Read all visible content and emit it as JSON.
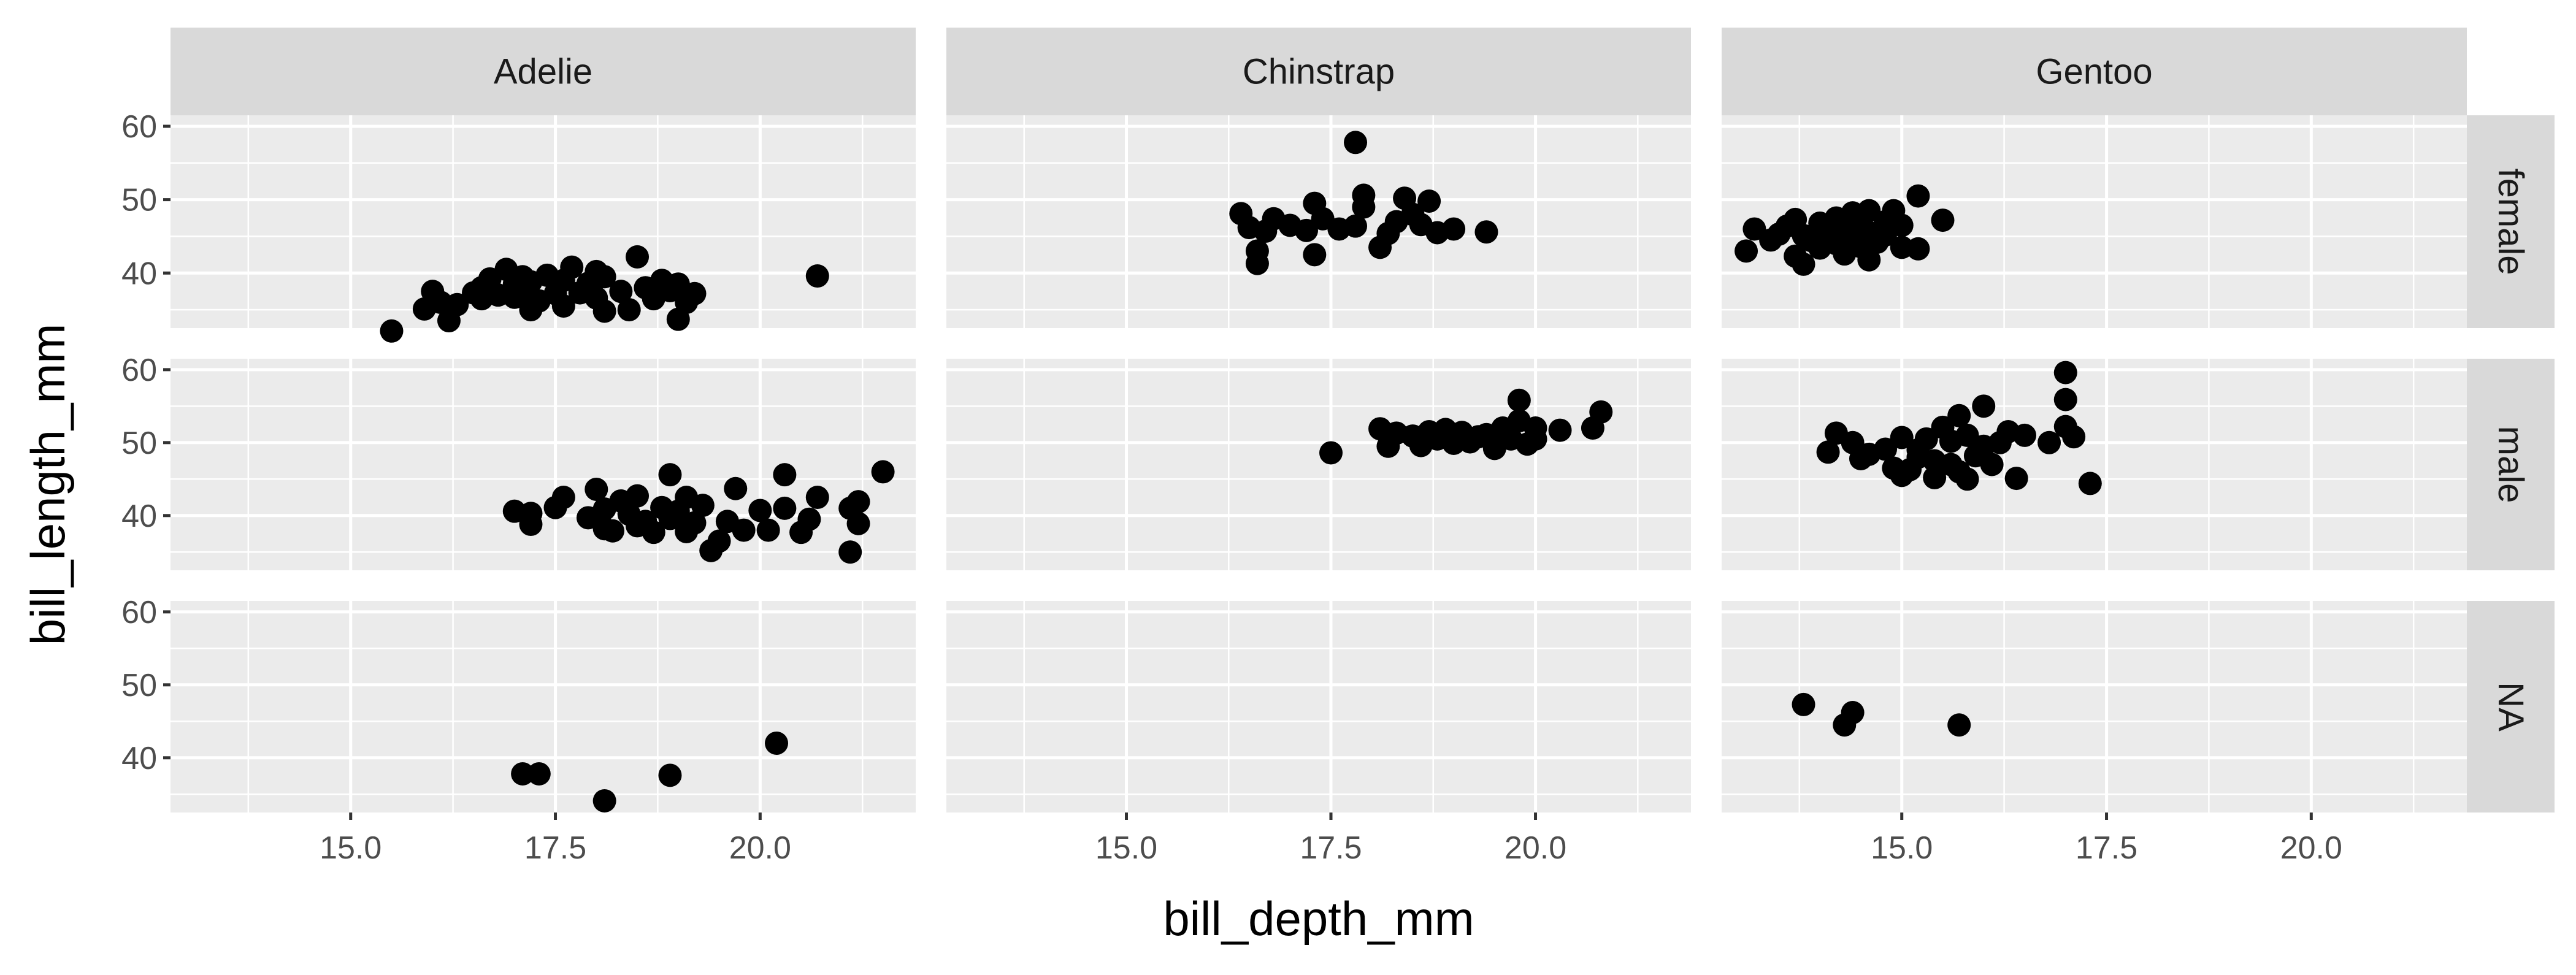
{
  "chart_data": {
    "type": "scatter",
    "xlabel": "bill_depth_mm",
    "ylabel": "bill_length_mm",
    "xlim": [
      12.8,
      21.9
    ],
    "ylim": [
      32.5,
      61.5
    ],
    "x_ticks": [
      15.0,
      17.5,
      20.0
    ],
    "x_tick_labels": [
      "15.0",
      "17.5",
      "20.0"
    ],
    "y_ticks": [
      40,
      50,
      60
    ],
    "y_tick_labels": [
      "40",
      "50",
      "60"
    ],
    "grid": true,
    "facet_cols": [
      "Adelie",
      "Chinstrap",
      "Gentoo"
    ],
    "facet_rows": [
      "female",
      "male",
      "NA"
    ],
    "panels": [
      {
        "col": "Adelie",
        "row": "female",
        "points": [
          [
            15.5,
            32.1
          ],
          [
            15.9,
            35.1
          ],
          [
            16.0,
            37.5
          ],
          [
            16.1,
            36.0
          ],
          [
            16.2,
            33.5
          ],
          [
            16.3,
            35.7
          ],
          [
            16.5,
            37.3
          ],
          [
            16.6,
            38.0
          ],
          [
            16.6,
            36.5
          ],
          [
            16.7,
            39.2
          ],
          [
            16.8,
            37.0
          ],
          [
            16.9,
            40.5
          ],
          [
            17.0,
            38.5
          ],
          [
            17.0,
            36.7
          ],
          [
            17.1,
            39.5
          ],
          [
            17.1,
            37.6
          ],
          [
            17.2,
            35.0
          ],
          [
            17.2,
            38.8
          ],
          [
            17.3,
            36.2
          ],
          [
            17.4,
            39.7
          ],
          [
            17.5,
            37.2
          ],
          [
            17.6,
            35.5
          ],
          [
            17.6,
            39.0
          ],
          [
            17.7,
            40.8
          ],
          [
            17.8,
            37.3
          ],
          [
            17.9,
            38.6
          ],
          [
            18.0,
            36.6
          ],
          [
            18.0,
            40.2
          ],
          [
            18.1,
            39.5
          ],
          [
            18.1,
            34.8
          ],
          [
            18.3,
            37.5
          ],
          [
            18.4,
            35.0
          ],
          [
            18.5,
            42.2
          ],
          [
            18.6,
            38.0
          ],
          [
            18.7,
            36.5
          ],
          [
            18.8,
            39.0
          ],
          [
            18.9,
            37.6
          ],
          [
            19.0,
            33.7
          ],
          [
            19.0,
            38.5
          ],
          [
            19.1,
            36.0
          ],
          [
            19.2,
            37.2
          ],
          [
            20.7,
            39.6
          ]
        ]
      },
      {
        "col": "Chinstrap",
        "row": "female",
        "points": [
          [
            16.4,
            48.1
          ],
          [
            16.5,
            46.2
          ],
          [
            16.6,
            41.3
          ],
          [
            16.6,
            43.0
          ],
          [
            16.7,
            45.7
          ],
          [
            16.8,
            47.4
          ],
          [
            17.0,
            46.5
          ],
          [
            17.2,
            45.8
          ],
          [
            17.3,
            42.5
          ],
          [
            17.3,
            49.5
          ],
          [
            17.4,
            47.4
          ],
          [
            17.6,
            46.0
          ],
          [
            17.8,
            57.8
          ],
          [
            17.8,
            46.4
          ],
          [
            17.9,
            50.6
          ],
          [
            17.9,
            49.0
          ],
          [
            18.1,
            43.5
          ],
          [
            18.2,
            45.4
          ],
          [
            18.3,
            47.0
          ],
          [
            18.4,
            50.2
          ],
          [
            18.5,
            48.0
          ],
          [
            18.6,
            46.6
          ],
          [
            18.7,
            49.8
          ],
          [
            18.8,
            45.5
          ],
          [
            19.0,
            46.0
          ],
          [
            19.4,
            45.6
          ]
        ]
      },
      {
        "col": "Gentoo",
        "row": "female",
        "points": [
          [
            13.1,
            43.0
          ],
          [
            13.2,
            46.0
          ],
          [
            13.4,
            44.5
          ],
          [
            13.5,
            45.3
          ],
          [
            13.6,
            46.4
          ],
          [
            13.7,
            42.3
          ],
          [
            13.7,
            47.3
          ],
          [
            13.8,
            45.1
          ],
          [
            13.8,
            41.2
          ],
          [
            13.9,
            44.4
          ],
          [
            14.0,
            46.8
          ],
          [
            14.0,
            43.4
          ],
          [
            14.1,
            45.6
          ],
          [
            14.2,
            47.5
          ],
          [
            14.2,
            44.0
          ],
          [
            14.3,
            46.2
          ],
          [
            14.3,
            42.6
          ],
          [
            14.4,
            48.2
          ],
          [
            14.4,
            45.0
          ],
          [
            14.5,
            46.7
          ],
          [
            14.5,
            43.6
          ],
          [
            14.6,
            48.5
          ],
          [
            14.6,
            45.5
          ],
          [
            14.7,
            44.2
          ],
          [
            14.8,
            47.0
          ],
          [
            14.8,
            45.2
          ],
          [
            14.9,
            48.5
          ],
          [
            15.0,
            46.5
          ],
          [
            15.0,
            43.5
          ],
          [
            14.6,
            41.8
          ],
          [
            15.2,
            50.5
          ],
          [
            15.2,
            43.3
          ],
          [
            15.5,
            47.2
          ]
        ]
      },
      {
        "col": "Adelie",
        "row": "male",
        "points": [
          [
            17.0,
            40.6
          ],
          [
            17.2,
            38.8
          ],
          [
            17.2,
            40.3
          ],
          [
            17.5,
            41.1
          ],
          [
            17.6,
            42.5
          ],
          [
            17.9,
            39.7
          ],
          [
            18.0,
            43.6
          ],
          [
            18.1,
            38.2
          ],
          [
            18.1,
            40.9
          ],
          [
            18.2,
            37.9
          ],
          [
            18.3,
            42.0
          ],
          [
            18.4,
            40.2
          ],
          [
            18.5,
            38.6
          ],
          [
            18.5,
            42.7
          ],
          [
            18.6,
            39.2
          ],
          [
            18.7,
            37.7
          ],
          [
            18.8,
            41.1
          ],
          [
            18.9,
            39.6
          ],
          [
            18.9,
            45.6
          ],
          [
            19.0,
            40.6
          ],
          [
            19.1,
            37.8
          ],
          [
            19.1,
            42.5
          ],
          [
            19.2,
            39.0
          ],
          [
            19.3,
            41.4
          ],
          [
            19.4,
            35.2
          ],
          [
            19.5,
            36.5
          ],
          [
            19.6,
            39.2
          ],
          [
            19.7,
            43.7
          ],
          [
            19.8,
            38.0
          ],
          [
            20.0,
            40.7
          ],
          [
            20.1,
            38.0
          ],
          [
            20.3,
            45.6
          ],
          [
            20.3,
            41.0
          ],
          [
            20.5,
            37.7
          ],
          [
            20.6,
            39.5
          ],
          [
            20.7,
            42.5
          ],
          [
            21.1,
            41.0
          ],
          [
            21.1,
            35.0
          ],
          [
            21.2,
            38.9
          ],
          [
            21.2,
            41.9
          ],
          [
            21.5,
            46.0
          ]
        ]
      },
      {
        "col": "Chinstrap",
        "row": "male",
        "points": [
          [
            17.5,
            48.6
          ],
          [
            18.1,
            51.9
          ],
          [
            18.2,
            49.5
          ],
          [
            18.3,
            51.3
          ],
          [
            18.5,
            50.9
          ],
          [
            18.6,
            49.6
          ],
          [
            18.7,
            51.5
          ],
          [
            18.8,
            50.5
          ],
          [
            18.9,
            51.8
          ],
          [
            19.0,
            49.9
          ],
          [
            19.1,
            51.4
          ],
          [
            19.2,
            50.1
          ],
          [
            19.3,
            50.8
          ],
          [
            19.4,
            51.1
          ],
          [
            19.5,
            49.2
          ],
          [
            19.6,
            52.0
          ],
          [
            19.7,
            50.5
          ],
          [
            19.8,
            55.8
          ],
          [
            19.8,
            53.0
          ],
          [
            19.9,
            49.8
          ],
          [
            20.0,
            52.0
          ],
          [
            20.0,
            50.5
          ],
          [
            20.3,
            51.7
          ],
          [
            20.7,
            52.0
          ],
          [
            20.8,
            54.2
          ]
        ]
      },
      {
        "col": "Gentoo",
        "row": "male",
        "points": [
          [
            14.1,
            48.7
          ],
          [
            14.2,
            51.3
          ],
          [
            14.4,
            50.0
          ],
          [
            14.5,
            47.8
          ],
          [
            14.6,
            48.4
          ],
          [
            14.8,
            49.1
          ],
          [
            14.9,
            46.5
          ],
          [
            15.0,
            45.5
          ],
          [
            15.0,
            50.7
          ],
          [
            15.1,
            46.3
          ],
          [
            15.2,
            49.0
          ],
          [
            15.2,
            48.0
          ],
          [
            15.3,
            50.5
          ],
          [
            15.4,
            45.2
          ],
          [
            15.4,
            47.5
          ],
          [
            15.5,
            52.1
          ],
          [
            15.6,
            47.0
          ],
          [
            15.6,
            50.2
          ],
          [
            15.7,
            53.7
          ],
          [
            15.7,
            46.0
          ],
          [
            15.8,
            45.0
          ],
          [
            15.8,
            51.0
          ],
          [
            15.9,
            48.2
          ],
          [
            16.0,
            55.0
          ],
          [
            16.0,
            49.5
          ],
          [
            16.1,
            47.0
          ],
          [
            16.2,
            50.0
          ],
          [
            16.3,
            51.5
          ],
          [
            16.4,
            45.1
          ],
          [
            16.5,
            51.0
          ],
          [
            16.8,
            50.0
          ],
          [
            17.0,
            59.6
          ],
          [
            17.0,
            55.9
          ],
          [
            17.0,
            52.2
          ],
          [
            17.1,
            50.8
          ],
          [
            17.3,
            44.4
          ]
        ]
      },
      {
        "col": "Adelie",
        "row": "NA",
        "points": [
          [
            17.1,
            37.8
          ],
          [
            17.3,
            37.8
          ],
          [
            18.1,
            34.1
          ],
          [
            18.9,
            37.6
          ],
          [
            20.2,
            42.0
          ]
        ]
      },
      {
        "col": "Chinstrap",
        "row": "NA",
        "points": []
      },
      {
        "col": "Gentoo",
        "row": "NA",
        "points": [
          [
            13.8,
            47.3
          ],
          [
            14.3,
            44.5
          ],
          [
            14.4,
            46.2
          ],
          [
            15.7,
            44.5
          ]
        ]
      }
    ]
  }
}
